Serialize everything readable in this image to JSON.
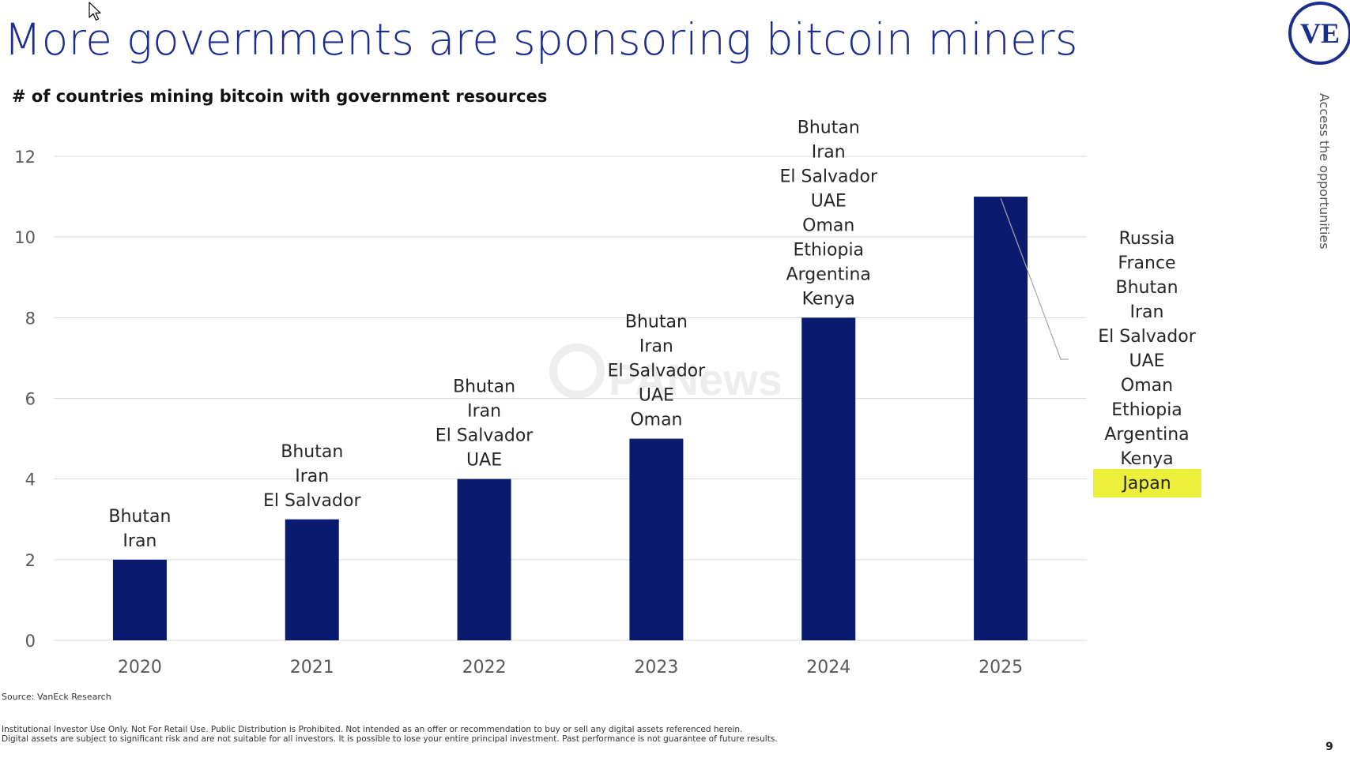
{
  "slide": {
    "title": "More governments are sponsoring bitcoin miners",
    "subtitle": "# of countries mining bitcoin with government resources",
    "logo_text": "VE",
    "side_tagline": "Access the opportunities",
    "source": "Source: VanEck Research",
    "disclaimer_line1": "Institutional Investor Use Only. Not For Retail Use. Public Distribution is Prohibited. Not intended as an offer or recommendation to buy or sell any digital assets referenced herein.",
    "disclaimer_line2": "Digital assets are subject to significant risk and are not suitable for all investors. It is possible to lose your entire principal investment. Past performance is not guarantee of future results.",
    "page_number": "9",
    "watermark": "PANews"
  },
  "colors": {
    "bar": "#0a1a6e",
    "title": "#1b2d8f",
    "grid": "#d9d9d9",
    "axis_text": "#595959",
    "label_text": "#262626",
    "highlight": "#ecf03a"
  },
  "chart_data": {
    "type": "bar",
    "title": "# of countries mining bitcoin with government resources",
    "xlabel": "",
    "ylabel": "",
    "categories": [
      "2020",
      "2021",
      "2022",
      "2023",
      "2024",
      "2025"
    ],
    "values": [
      2,
      3,
      4,
      5,
      8,
      11
    ],
    "ylim": [
      0,
      12
    ],
    "yticks": [
      "0",
      "2",
      "4",
      "6",
      "8",
      "10",
      "12"
    ],
    "grid": true,
    "legend": "none",
    "annotations": [
      [
        "Bhutan",
        "Iran"
      ],
      [
        "Bhutan",
        "Iran",
        "El Salvador"
      ],
      [
        "Bhutan",
        "Iran",
        "El Salvador",
        "UAE"
      ],
      [
        "Bhutan",
        "Iran",
        "El Salvador",
        "UAE",
        "Oman"
      ],
      [
        "Bhutan",
        "Iran",
        "El Salvador",
        "UAE",
        "Oman",
        "Ethiopia",
        "Argentina",
        "Kenya"
      ],
      [
        "Russia",
        "France",
        "Bhutan",
        "Iran",
        "El Salvador",
        "UAE",
        "Oman",
        "Ethiopia",
        "Argentina",
        "Kenya",
        "Japan"
      ]
    ],
    "highlighted_annotation": "Japan"
  }
}
